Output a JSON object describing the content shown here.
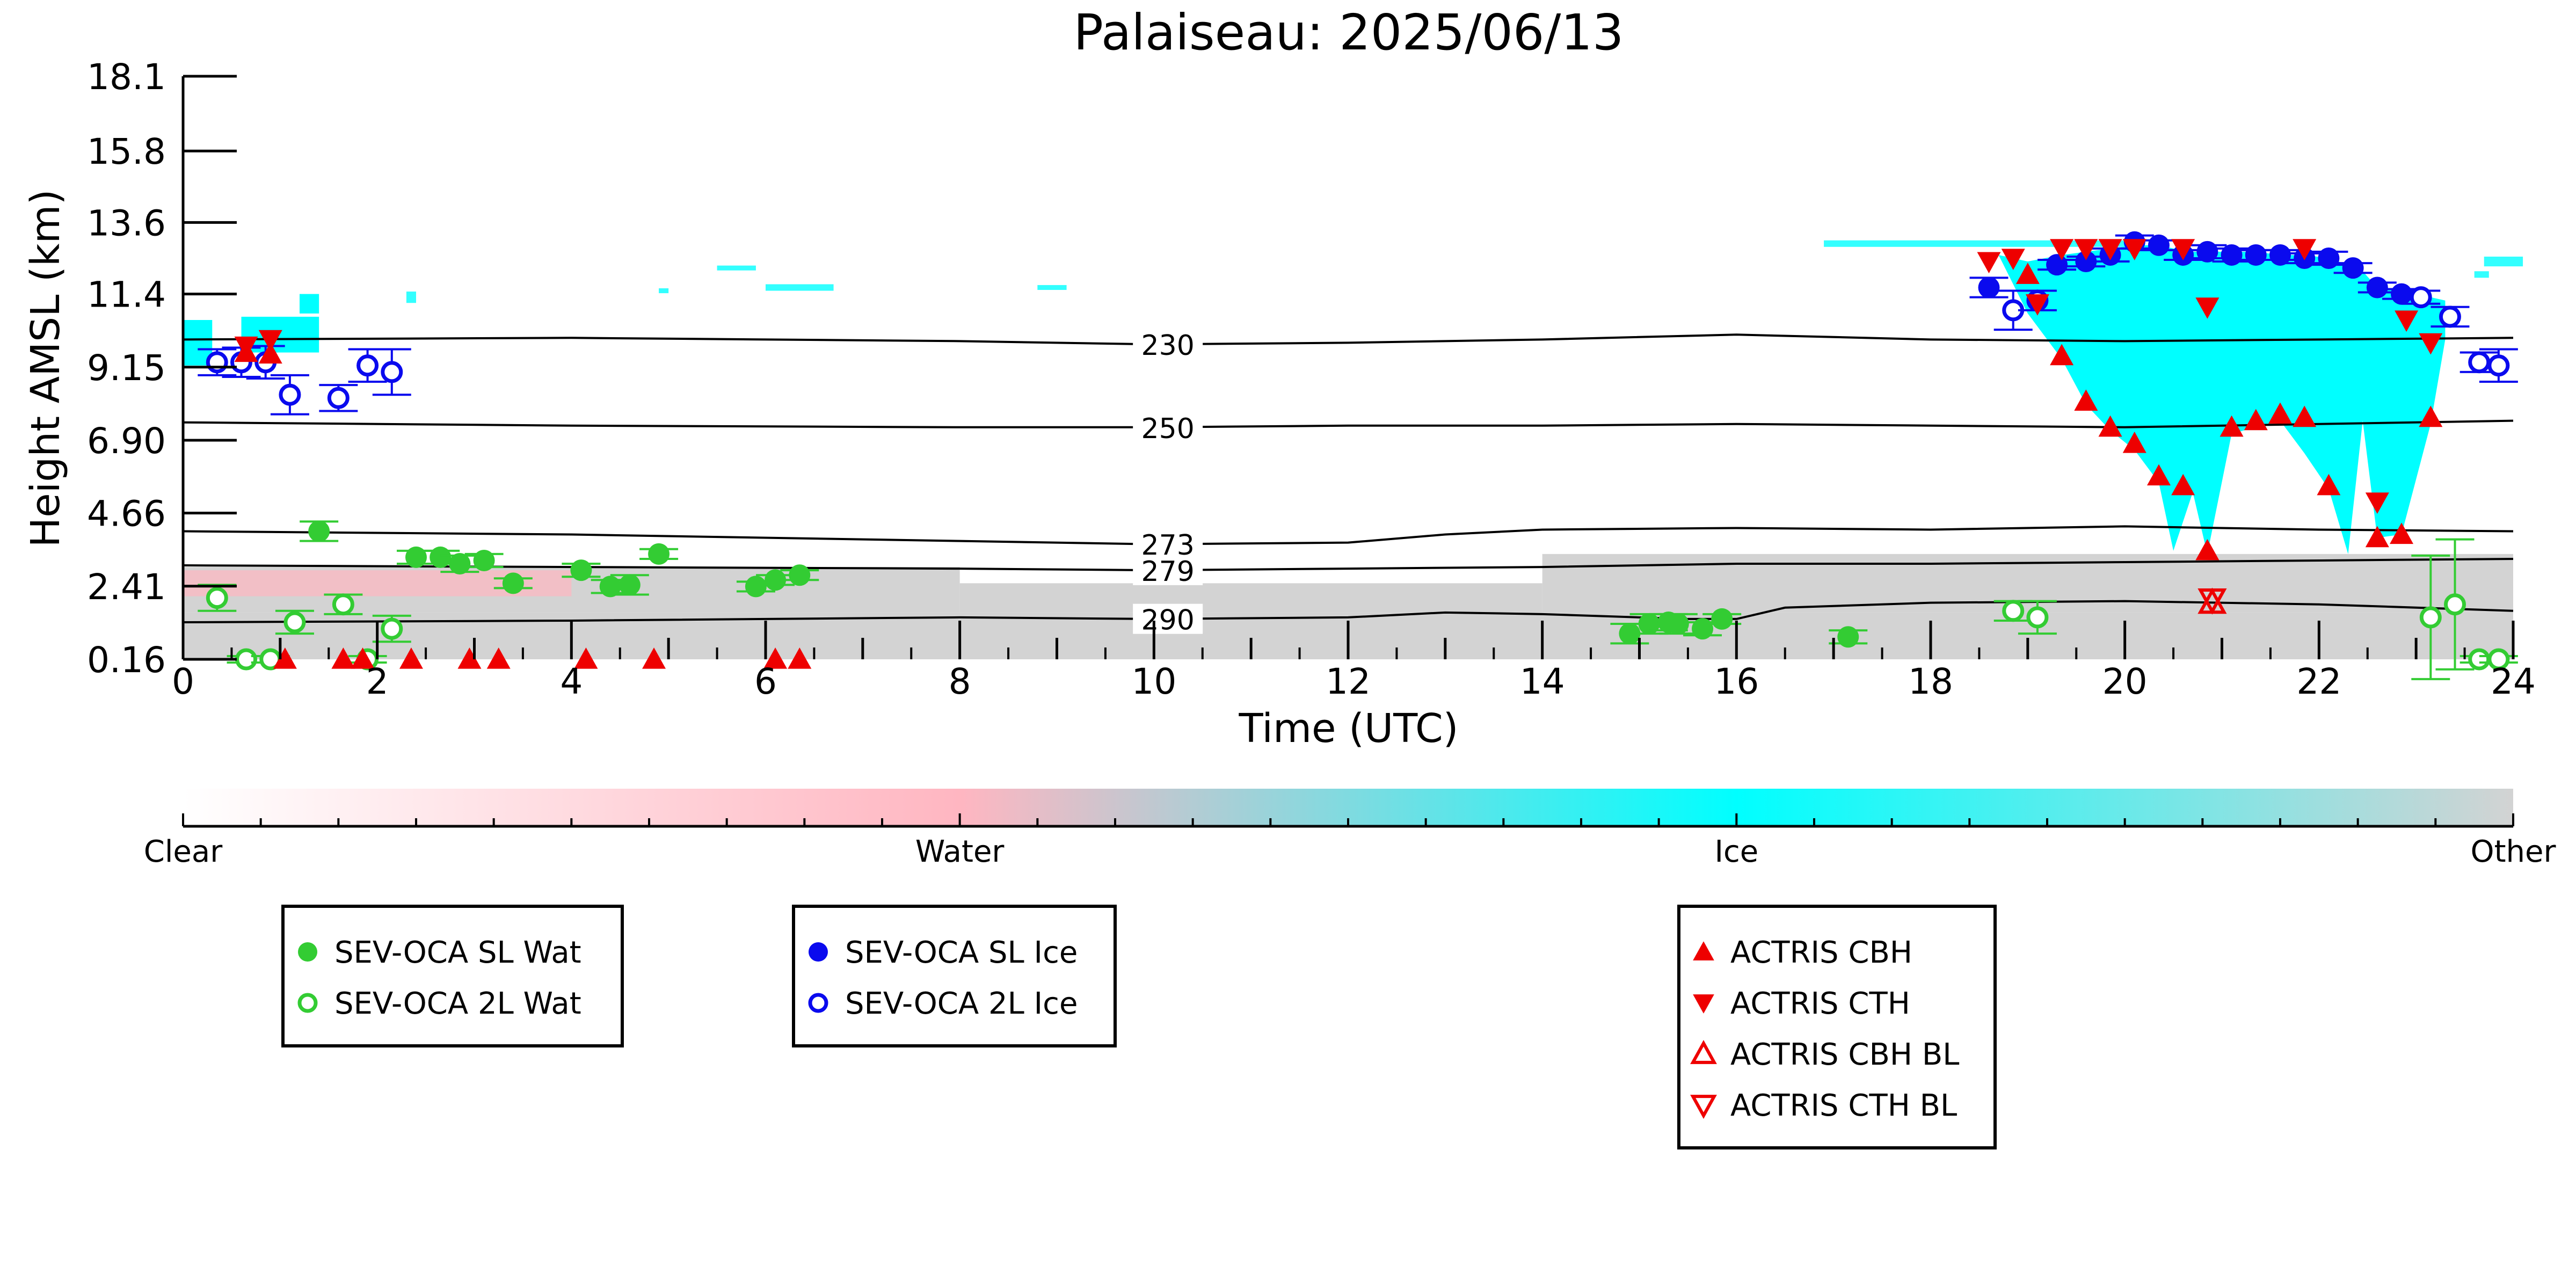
{
  "chart_data": {
    "type": "scatter",
    "title": "Palaiseau: 2025/06/13",
    "xlabel": "Time (UTC)",
    "ylabel": "Height AMSL (km)",
    "xlim": [
      0,
      24
    ],
    "xticks": [
      "0",
      "2",
      "4",
      "6",
      "8",
      "10",
      "12",
      "14",
      "16",
      "18",
      "20",
      "22",
      "24"
    ],
    "ylim": [
      0.16,
      18.1
    ],
    "yticks": [
      "0.16",
      "2.41",
      "4.66",
      "6.90",
      "9.15",
      "11.4",
      "13.6",
      "15.8",
      "18.1"
    ],
    "grid": false,
    "colors": {
      "clear": "#ffffff",
      "water": "#ffb6c1",
      "ice": "#00ffff",
      "other": "#d3d3d3",
      "sev_water": "#33cc33",
      "sev_ice": "#0a0aee",
      "actris": "#ee0000"
    },
    "colorbar": {
      "labels": [
        "Clear",
        "Water",
        "Ice",
        "Other"
      ],
      "stops": [
        "#ffffff",
        "#ffb6c1",
        "#00ffff",
        "#d3d3d3"
      ]
    },
    "isotherms": [
      {
        "label": "230",
        "label_x": 9.8,
        "points": [
          [
            0,
            10.0
          ],
          [
            4,
            10.05
          ],
          [
            8,
            9.95
          ],
          [
            10,
            9.85
          ],
          [
            12,
            9.9
          ],
          [
            14,
            10.0
          ],
          [
            16,
            10.15
          ],
          [
            18,
            10.0
          ],
          [
            20,
            9.95
          ],
          [
            22,
            10.0
          ],
          [
            24,
            10.05
          ]
        ]
      },
      {
        "label": "250",
        "label_x": 9.8,
        "points": [
          [
            0,
            7.45
          ],
          [
            4,
            7.35
          ],
          [
            8,
            7.3
          ],
          [
            10,
            7.3
          ],
          [
            12,
            7.35
          ],
          [
            14,
            7.35
          ],
          [
            16,
            7.4
          ],
          [
            18,
            7.35
          ],
          [
            20,
            7.3
          ],
          [
            22,
            7.4
          ],
          [
            24,
            7.5
          ]
        ]
      },
      {
        "label": "273",
        "label_x": 9.8,
        "points": [
          [
            0,
            4.1
          ],
          [
            4,
            4.0
          ],
          [
            8,
            3.8
          ],
          [
            10,
            3.7
          ],
          [
            12,
            3.75
          ],
          [
            13,
            4.0
          ],
          [
            14,
            4.15
          ],
          [
            16,
            4.2
          ],
          [
            18,
            4.15
          ],
          [
            20,
            4.25
          ],
          [
            22,
            4.15
          ],
          [
            24,
            4.1
          ]
        ]
      },
      {
        "label": "279",
        "label_x": 9.8,
        "points": [
          [
            0,
            3.05
          ],
          [
            4,
            3.0
          ],
          [
            8,
            2.95
          ],
          [
            10,
            2.9
          ],
          [
            12,
            2.95
          ],
          [
            14,
            3.0
          ],
          [
            16,
            3.1
          ],
          [
            18,
            3.1
          ],
          [
            20,
            3.15
          ],
          [
            22,
            3.2
          ],
          [
            24,
            3.25
          ]
        ]
      },
      {
        "label": "290",
        "label_x": 9.8,
        "points": [
          [
            0,
            1.3
          ],
          [
            4,
            1.35
          ],
          [
            8,
            1.45
          ],
          [
            10,
            1.4
          ],
          [
            12,
            1.45
          ],
          [
            13,
            1.6
          ],
          [
            14,
            1.55
          ],
          [
            15.5,
            1.4
          ],
          [
            16,
            1.4
          ],
          [
            16.5,
            1.75
          ],
          [
            18,
            1.9
          ],
          [
            20,
            1.95
          ],
          [
            22,
            1.85
          ],
          [
            24,
            1.65
          ]
        ]
      }
    ],
    "series": [
      {
        "name": "SEV-OCA SL Wat",
        "marker": "filled-circle",
        "color": "#33cc33",
        "points": [
          [
            1.4,
            4.1,
            0.3
          ],
          [
            2.4,
            3.3,
            0.2
          ],
          [
            2.65,
            3.3,
            0.2
          ],
          [
            2.85,
            3.1,
            0.25
          ],
          [
            3.1,
            3.2,
            0.2
          ],
          [
            3.4,
            2.5,
            0.15
          ],
          [
            4.1,
            2.9,
            0.2
          ],
          [
            4.4,
            2.4,
            0.2
          ],
          [
            4.6,
            2.45,
            0.3
          ],
          [
            4.9,
            3.4,
            0.15
          ],
          [
            5.9,
            2.4,
            0.15
          ],
          [
            6.1,
            2.6,
            0.15
          ],
          [
            6.35,
            2.75,
            0.15
          ],
          [
            14.9,
            0.95,
            0.3
          ],
          [
            15.1,
            1.25,
            0.3
          ],
          [
            15.3,
            1.3,
            0.25
          ],
          [
            15.4,
            1.25,
            0.3
          ],
          [
            15.65,
            1.1,
            0.2
          ],
          [
            15.85,
            1.4,
            0.15
          ],
          [
            17.15,
            0.85,
            0.2
          ]
        ]
      },
      {
        "name": "SEV-OCA 2L Wat",
        "marker": "open-circle",
        "color": "#33cc33",
        "points": [
          [
            0.35,
            2.05,
            0.4
          ],
          [
            0.65,
            0.16,
            0.1
          ],
          [
            0.9,
            0.16,
            0.1
          ],
          [
            1.15,
            1.3,
            0.35
          ],
          [
            1.65,
            1.85,
            0.3
          ],
          [
            1.9,
            0.16,
            0.1
          ],
          [
            2.15,
            1.1,
            0.4
          ],
          [
            18.85,
            1.65,
            0.3
          ],
          [
            19.1,
            1.45,
            0.5
          ],
          [
            23.15,
            1.45,
            1.9
          ],
          [
            23.4,
            1.85,
            2.0
          ],
          [
            23.65,
            0.16,
            0.1
          ],
          [
            23.85,
            0.16,
            0.1
          ]
        ]
      },
      {
        "name": "SEV-OCA SL Ice",
        "marker": "filled-circle",
        "color": "#0a0aee",
        "points": [
          [
            18.6,
            11.6,
            0.3
          ],
          [
            19.3,
            12.3,
            0.15
          ],
          [
            19.6,
            12.4,
            0.15
          ],
          [
            19.85,
            12.6,
            0.2
          ],
          [
            20.1,
            13.0,
            0.2
          ],
          [
            20.35,
            12.9,
            0.15
          ],
          [
            20.6,
            12.6,
            0.15
          ],
          [
            20.85,
            12.7,
            0.2
          ],
          [
            21.1,
            12.6,
            0.2
          ],
          [
            21.35,
            12.6,
            0.15
          ],
          [
            21.6,
            12.6,
            0.15
          ],
          [
            21.85,
            12.5,
            0.15
          ],
          [
            22.1,
            12.5,
            0.2
          ],
          [
            22.35,
            12.2,
            0.15
          ],
          [
            22.6,
            11.6,
            0.15
          ],
          [
            22.85,
            11.4,
            0.15
          ]
        ]
      },
      {
        "name": "SEV-OCA 2L Ice",
        "marker": "open-circle",
        "color": "#0a0aee",
        "points": [
          [
            0.35,
            9.3,
            0.4
          ],
          [
            0.6,
            9.3,
            0.45
          ],
          [
            0.85,
            9.3,
            0.5
          ],
          [
            1.1,
            8.3,
            0.6
          ],
          [
            1.6,
            8.2,
            0.4
          ],
          [
            1.9,
            9.2,
            0.5
          ],
          [
            2.15,
            9.0,
            0.7
          ],
          [
            18.85,
            10.9,
            0.6
          ],
          [
            19.1,
            11.2,
            0.3
          ],
          [
            23.05,
            11.3,
            0.2
          ],
          [
            23.35,
            10.7,
            0.3
          ],
          [
            23.65,
            9.3,
            0.3
          ],
          [
            23.85,
            9.2,
            0.5
          ]
        ]
      },
      {
        "name": "ACTRIS CBH",
        "marker": "triangle-up",
        "color": "#ee0000",
        "points": [
          [
            0.65,
            9.6
          ],
          [
            0.9,
            9.55
          ],
          [
            1.05,
            0.16
          ],
          [
            1.65,
            0.16
          ],
          [
            1.85,
            0.16
          ],
          [
            2.35,
            0.16
          ],
          [
            2.95,
            0.16
          ],
          [
            3.25,
            0.16
          ],
          [
            4.15,
            0.16
          ],
          [
            4.85,
            0.16
          ],
          [
            6.1,
            0.16
          ],
          [
            6.35,
            0.16
          ],
          [
            19.0,
            12.0
          ],
          [
            19.35,
            9.5
          ],
          [
            19.6,
            8.1
          ],
          [
            19.85,
            7.3
          ],
          [
            20.1,
            6.8
          ],
          [
            20.35,
            5.8
          ],
          [
            20.6,
            5.5
          ],
          [
            20.85,
            3.5
          ],
          [
            21.1,
            7.3
          ],
          [
            21.35,
            7.5
          ],
          [
            21.6,
            7.7
          ],
          [
            21.85,
            7.6
          ],
          [
            22.1,
            5.5
          ],
          [
            22.6,
            3.9
          ],
          [
            22.85,
            4.0
          ],
          [
            23.15,
            7.6
          ]
        ]
      },
      {
        "name": "ACTRIS CTH",
        "marker": "triangle-down",
        "color": "#ee0000",
        "points": [
          [
            0.65,
            9.8
          ],
          [
            0.9,
            10.0
          ],
          [
            18.6,
            12.4
          ],
          [
            18.85,
            12.5
          ],
          [
            19.1,
            11.1
          ],
          [
            19.35,
            12.8
          ],
          [
            19.6,
            12.8
          ],
          [
            19.85,
            12.8
          ],
          [
            20.1,
            12.8
          ],
          [
            20.6,
            12.8
          ],
          [
            20.85,
            11.0
          ],
          [
            21.85,
            12.8
          ],
          [
            22.6,
            5.0
          ],
          [
            22.9,
            10.6
          ],
          [
            23.15,
            9.9
          ]
        ]
      },
      {
        "name": "ACTRIS CBH BL",
        "marker": "open-triangle-up",
        "color": "#ee0000",
        "points": [
          [
            20.9,
            1.9
          ]
        ]
      },
      {
        "name": "ACTRIS CTH BL",
        "marker": "open-triangle-down",
        "color": "#ee0000",
        "points": [
          [
            20.9,
            2.0
          ]
        ]
      }
    ],
    "legend_groups": [
      {
        "placement": "bottom-left",
        "items": [
          "SEV-OCA SL Wat",
          "SEV-OCA 2L Wat"
        ]
      },
      {
        "placement": "bottom-center-left",
        "items": [
          "SEV-OCA SL Ice",
          "SEV-OCA 2L Ice"
        ]
      },
      {
        "placement": "bottom-center-right",
        "items": [
          "ACTRIS CBH",
          "ACTRIS CTH",
          "ACTRIS CBH BL",
          "ACTRIS CTH BL"
        ]
      }
    ],
    "cloud_regions": [
      {
        "class": "other",
        "x0": 0,
        "x1": 24,
        "y0": 0.16,
        "y1": 1.6
      },
      {
        "class": "other",
        "x0": 0,
        "x1": 8,
        "y0": 1.6,
        "y1": 3.0
      },
      {
        "class": "other",
        "x0": 8,
        "x1": 14,
        "y0": 1.6,
        "y1": 2.5
      },
      {
        "class": "other",
        "x0": 14,
        "x1": 24,
        "y0": 1.6,
        "y1": 3.4
      },
      {
        "class": "water",
        "x0": 0,
        "x1": 4,
        "y0": 2.1,
        "y1": 2.9
      },
      {
        "class": "ice",
        "x0": 0,
        "x1": 0.3,
        "y0": 9.2,
        "y1": 10.6
      },
      {
        "class": "ice",
        "x0": 0.6,
        "x1": 1.4,
        "y0": 9.6,
        "y1": 10.7
      },
      {
        "class": "ice",
        "x0": 1.2,
        "x1": 1.4,
        "y0": 10.8,
        "y1": 11.4
      }
    ],
    "ice_column": [
      [
        18.7,
        12.6,
        12.6
      ],
      [
        19.0,
        12.4,
        10.8
      ],
      [
        19.35,
        12.6,
        9.4
      ],
      [
        19.6,
        12.7,
        8.0
      ],
      [
        19.85,
        12.8,
        7.2
      ],
      [
        20.1,
        12.9,
        6.6
      ],
      [
        20.35,
        12.9,
        5.6
      ],
      [
        20.5,
        12.8,
        3.5
      ],
      [
        20.7,
        12.7,
        5.3
      ],
      [
        20.85,
        12.7,
        3.4
      ],
      [
        21.1,
        12.7,
        7.1
      ],
      [
        21.35,
        12.7,
        7.3
      ],
      [
        21.6,
        12.6,
        7.5
      ],
      [
        21.85,
        12.6,
        6.5
      ],
      [
        22.1,
        12.5,
        5.4
      ],
      [
        22.3,
        12.3,
        3.4
      ],
      [
        22.45,
        12.1,
        7.5
      ],
      [
        22.6,
        11.6,
        3.9
      ],
      [
        22.85,
        11.5,
        4.0
      ],
      [
        23.15,
        11.3,
        7.4
      ],
      [
        23.3,
        11.2,
        10.0
      ]
    ],
    "ice_wisps": [
      [
        5.5,
        12.2,
        0.4,
        0.15
      ],
      [
        6.0,
        11.6,
        0.7,
        0.2
      ],
      [
        8.8,
        11.6,
        0.3,
        0.15
      ],
      [
        4.9,
        11.5,
        0.1,
        0.15
      ],
      [
        2.3,
        11.3,
        0.1,
        0.35
      ],
      [
        23.7,
        12.4,
        0.4,
        0.3
      ],
      [
        23.6,
        12.0,
        0.15,
        0.2
      ],
      [
        16.9,
        12.95,
        3.1,
        0.2
      ]
    ]
  }
}
